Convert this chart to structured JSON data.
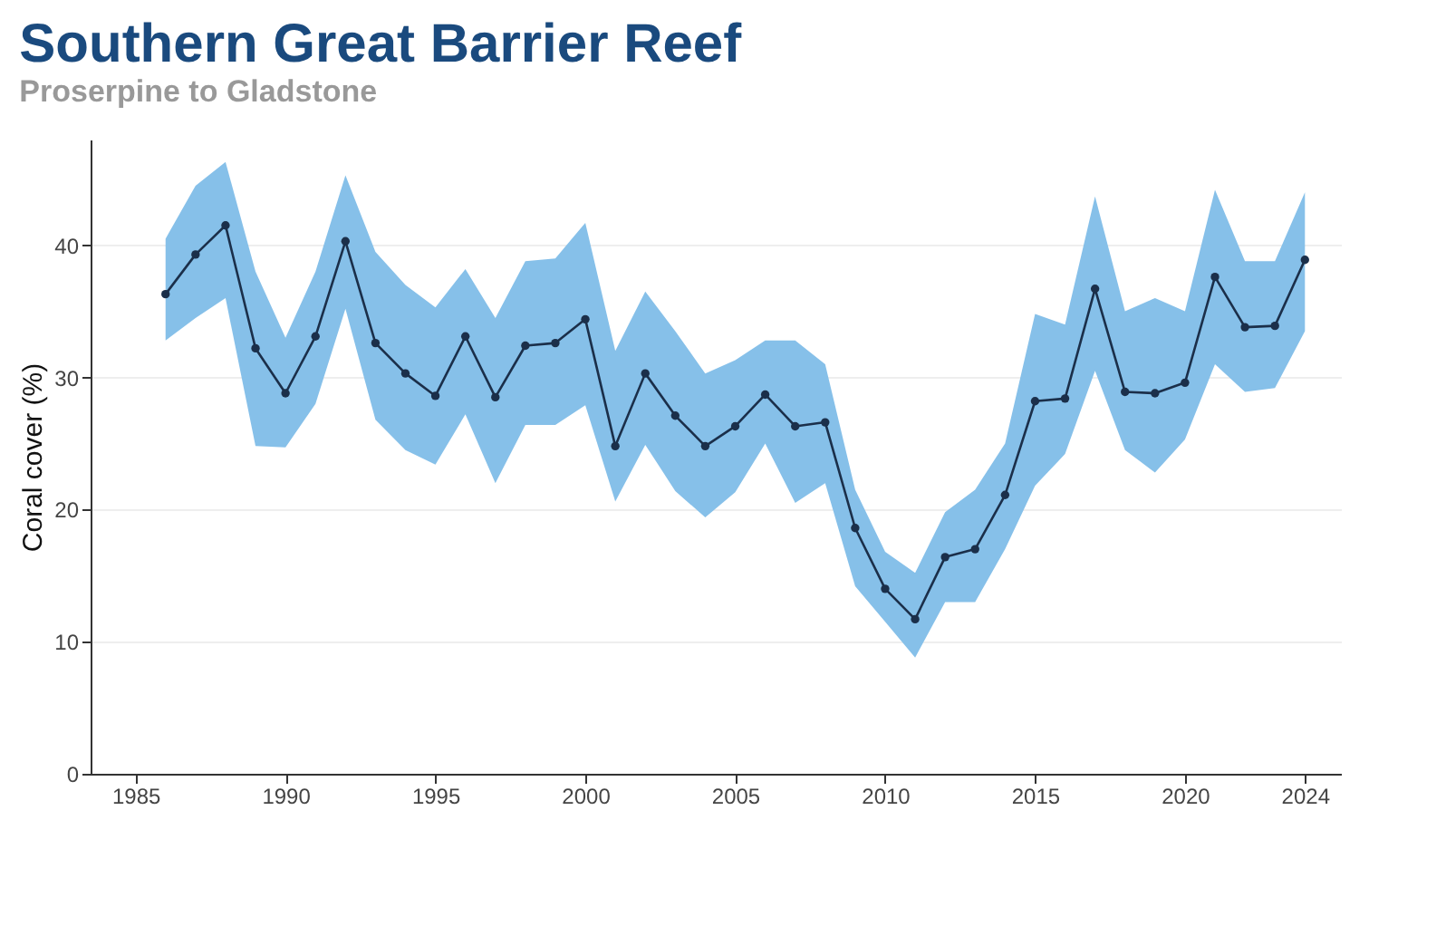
{
  "chart_data": {
    "type": "line",
    "title": "Southern Great Barrier Reef",
    "subtitle": "Proserpine to Gladstone",
    "ylabel": "Coral cover (%)",
    "x": [
      1986,
      1987,
      1988,
      1989,
      1990,
      1991,
      1992,
      1993,
      1994,
      1995,
      1996,
      1997,
      1998,
      1999,
      2000,
      2001,
      2002,
      2003,
      2004,
      2005,
      2006,
      2007,
      2008,
      2009,
      2010,
      2011,
      2012,
      2013,
      2014,
      2015,
      2016,
      2017,
      2018,
      2019,
      2020,
      2021,
      2022,
      2023,
      2024
    ],
    "series": [
      {
        "color": "#1b2f4a",
        "values": [
          36.3,
          39.3,
          41.5,
          32.2,
          28.8,
          33.1,
          40.3,
          32.6,
          30.3,
          28.6,
          33.1,
          28.5,
          32.4,
          32.6,
          34.4,
          24.8,
          30.3,
          27.1,
          24.8,
          26.3,
          28.7,
          26.3,
          26.6,
          18.6,
          14.0,
          11.7,
          16.4,
          17.0,
          21.1,
          28.2,
          28.4,
          36.7,
          28.9,
          28.8,
          29.6,
          37.6,
          33.8,
          33.9,
          38.9
        ],
        "upper": [
          40.5,
          44.5,
          46.3,
          38.0,
          33.0,
          38.0,
          45.3,
          39.5,
          37.0,
          35.3,
          38.2,
          34.5,
          38.8,
          39.0,
          41.7,
          32.0,
          36.5,
          33.5,
          30.3,
          31.3,
          32.8,
          32.8,
          31.0,
          21.5,
          16.8,
          15.2,
          19.8,
          21.5,
          25.0,
          34.8,
          34.0,
          43.7,
          35.0,
          36.0,
          35.0,
          44.2,
          38.8,
          38.8,
          44.0
        ],
        "lower": [
          32.8,
          34.5,
          36.0,
          24.8,
          24.7,
          28.0,
          35.2,
          26.8,
          24.5,
          23.4,
          27.2,
          22.0,
          26.4,
          26.4,
          27.9,
          20.6,
          24.9,
          21.4,
          19.4,
          21.3,
          25.0,
          20.5,
          22.0,
          14.2,
          11.5,
          8.8,
          13.0,
          13.0,
          17.0,
          21.8,
          24.2,
          30.5,
          24.5,
          22.8,
          25.3,
          31.0,
          28.9,
          29.2,
          33.5
        ]
      }
    ],
    "xlim": [
      1983.5,
      2025.2
    ],
    "xticks": [
      1985,
      1990,
      1995,
      2000,
      2005,
      2010,
      2015,
      2020,
      2024
    ],
    "ylim": [
      0,
      48
    ],
    "yticks": [
      0,
      10,
      20,
      30,
      40
    ],
    "grid": "y",
    "marker": "circle",
    "line_style": "solid"
  }
}
